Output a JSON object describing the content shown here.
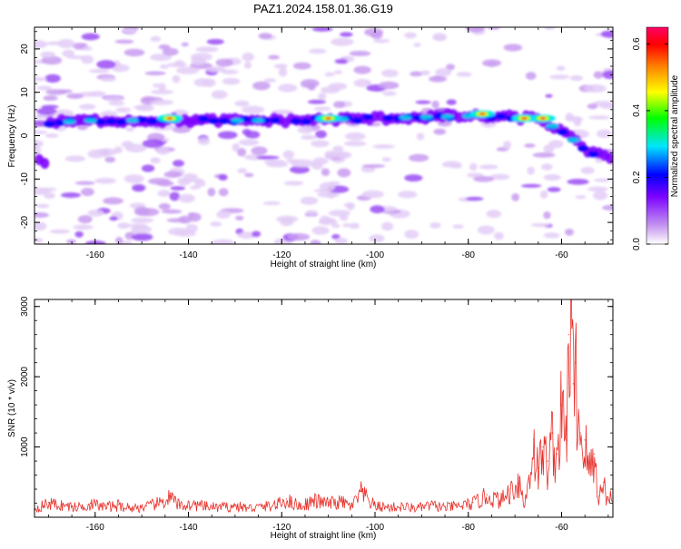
{
  "figure": {
    "title": "PAZ1.2024.158.01.36.G19"
  },
  "chart_data": [
    {
      "type": "heatmap",
      "title": "PAZ1.2024.158.01.36.G19",
      "xlabel": "Height of straight line (km)",
      "ylabel": "Frequency (Hz)",
      "xlim": [
        -173,
        -49
      ],
      "ylim": [
        -25,
        25
      ],
      "xticks": [
        -160,
        -140,
        -120,
        -100,
        -80,
        -60
      ],
      "yticks": [
        -20,
        -10,
        0,
        10,
        20
      ],
      "colorbar": {
        "label": "Normalized spectral amplitude",
        "range": [
          0,
          0.65
        ],
        "ticks": [
          0.0,
          0.2,
          0.4,
          0.6
        ],
        "colormap": [
          "#ffffff",
          "#c89bf0",
          "#7b00ff",
          "#0000ff",
          "#00e5ff",
          "#00ff00",
          "#ffff00",
          "#ff8000",
          "#ff0000",
          "#ff0066"
        ]
      },
      "dominant_band": {
        "description_points": [
          {
            "x": -170,
            "y": 3.0
          },
          {
            "x": -160,
            "y": 3.5
          },
          {
            "x": -140,
            "y": 3.5
          },
          {
            "x": -120,
            "y": 3.5
          },
          {
            "x": -100,
            "y": 4.0
          },
          {
            "x": -80,
            "y": 4.5
          },
          {
            "x": -65,
            "y": 4.0
          },
          {
            "x": -60,
            "y": 1.0
          },
          {
            "x": -55,
            "y": -3.0
          },
          {
            "x": -49,
            "y": -6.0
          }
        ],
        "peaks": [
          {
            "x": -144,
            "y": 4,
            "amplitude": 0.45
          },
          {
            "x": -110,
            "y": 4,
            "amplitude": 0.42
          },
          {
            "x": -77,
            "y": 5,
            "amplitude": 0.55
          },
          {
            "x": -68,
            "y": 4,
            "amplitude": 0.6
          },
          {
            "x": -64,
            "y": 4,
            "amplitude": 0.55
          }
        ]
      }
    },
    {
      "type": "line",
      "xlabel": "Height of straight line (km)",
      "ylabel": "SNR (10 * v/v)",
      "xlim": [
        -173,
        -49
      ],
      "ylim": [
        0,
        3100
      ],
      "xticks": [
        -160,
        -140,
        -120,
        -100,
        -80,
        -60
      ],
      "yticks": [
        1000,
        2000,
        3000
      ],
      "series": [
        {
          "color": "#e8302a",
          "x": [
            -173,
            -170,
            -167,
            -164,
            -161,
            -158,
            -155,
            -152,
            -149,
            -146,
            -144,
            -142,
            -139,
            -136,
            -133,
            -130,
            -127,
            -124,
            -121,
            -119,
            -116,
            -113,
            -110,
            -107,
            -105,
            -103,
            -100,
            -97,
            -94,
            -91,
            -88,
            -85,
            -82,
            -79,
            -76,
            -73,
            -71,
            -69,
            -68,
            -67,
            -66,
            -65,
            -64,
            -63,
            -62,
            -61,
            -60,
            -59,
            -58.5,
            -58,
            -57.5,
            -57,
            -56,
            -55,
            -54,
            -53,
            -52,
            -51,
            -50,
            -49
          ],
          "y": [
            130,
            210,
            180,
            150,
            200,
            160,
            180,
            140,
            160,
            220,
            300,
            180,
            190,
            160,
            150,
            170,
            140,
            160,
            190,
            260,
            170,
            250,
            210,
            230,
            160,
            370,
            170,
            150,
            160,
            140,
            180,
            150,
            170,
            210,
            320,
            250,
            400,
            560,
            150,
            600,
            1100,
            700,
            1000,
            800,
            1200,
            900,
            1600,
            1100,
            2600,
            3100,
            1900,
            2200,
            1200,
            1100,
            700,
            900,
            300,
            500,
            250,
            350
          ]
        }
      ]
    }
  ]
}
